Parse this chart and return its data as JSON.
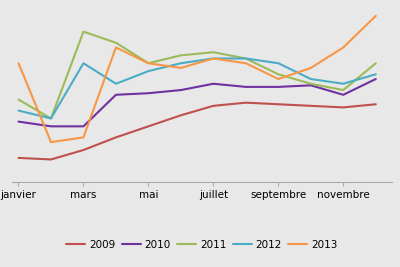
{
  "x_labels": [
    "janvier",
    "mars",
    "mai",
    "juillet",
    "septembre",
    "novembre"
  ],
  "x_ticks": [
    0,
    2,
    4,
    6,
    8,
    10
  ],
  "months": [
    0,
    1,
    2,
    3,
    4,
    5,
    6,
    7,
    8,
    9,
    10,
    11
  ],
  "series": {
    "2009": {
      "color": "#c0504d",
      "values": [
        1.5,
        1.4,
        2.0,
        2.8,
        3.5,
        4.2,
        4.8,
        5.0,
        4.9,
        4.8,
        4.7,
        4.9
      ]
    },
    "2010": {
      "color": "#7030a0",
      "values": [
        3.8,
        3.5,
        3.5,
        5.5,
        5.6,
        5.8,
        6.2,
        6.0,
        6.0,
        6.1,
        5.5,
        6.5
      ]
    },
    "2011": {
      "color": "#9bbb59",
      "values": [
        5.2,
        4.0,
        9.5,
        8.8,
        7.5,
        8.0,
        8.2,
        7.8,
        6.8,
        6.2,
        5.8,
        7.5
      ]
    },
    "2012": {
      "color": "#4bacc6",
      "values": [
        4.5,
        4.0,
        7.5,
        6.2,
        7.0,
        7.5,
        7.8,
        7.8,
        7.5,
        6.5,
        6.2,
        6.8
      ]
    },
    "2013": {
      "color": "#f79646",
      "values": [
        7.5,
        2.5,
        2.8,
        8.5,
        7.5,
        7.2,
        7.8,
        7.5,
        6.5,
        7.2,
        8.5,
        10.5
      ]
    }
  },
  "legend_order": [
    "2009",
    "2010",
    "2011",
    "2012",
    "2013"
  ],
  "ylim": [
    0,
    11
  ],
  "background_color": "#e8e8e8",
  "plot_bg": "#e8e8e8",
  "grid_color": "#ffffff",
  "linewidth": 1.5,
  "legend_fontsize": 7.5,
  "tick_fontsize": 7.5,
  "xlim": [
    -0.2,
    11.5
  ]
}
